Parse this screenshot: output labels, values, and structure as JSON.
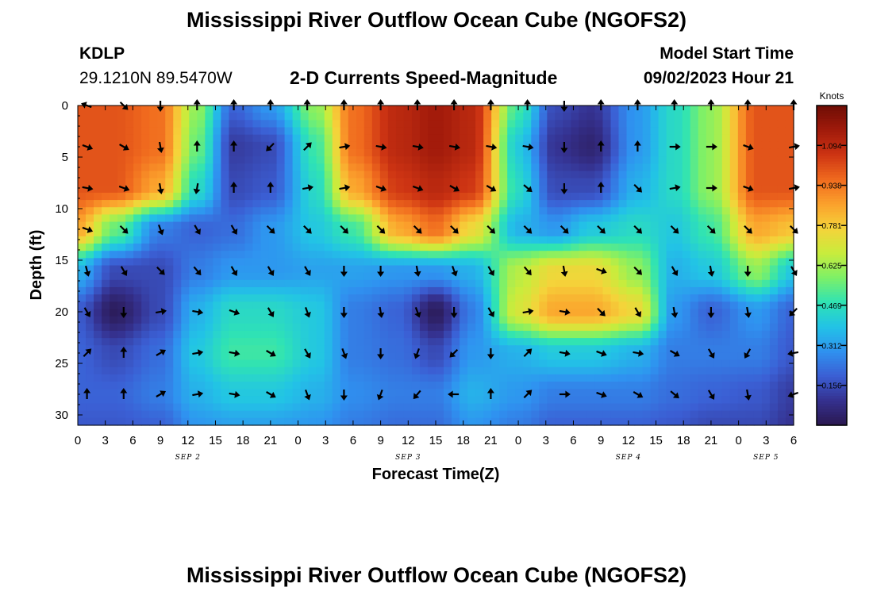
{
  "page": {
    "title": "Mississippi River Outflow Ocean Cube (NGOFS2)",
    "bottom_title": "Mississippi River Outflow Ocean Cube (NGOFS2)",
    "station_id": "KDLP",
    "station_coords": "29.1210N  89.5470W",
    "plot_title": "2-D Currents Speed-Magnitude",
    "model_start_label": "Model Start Time",
    "model_start_value": "09/02/2023 Hour 21"
  },
  "chart_data": {
    "type": "heatmap",
    "title": "2-D Currents Speed-Magnitude",
    "xlabel": "Forecast Time(Z)",
    "ylabel": "Depth (ft)",
    "x_range_hours": [
      0,
      78
    ],
    "x_tick_labels": [
      "0",
      "3",
      "6",
      "9",
      "12",
      "15",
      "18",
      "21",
      "0",
      "3",
      "6",
      "9",
      "12",
      "15",
      "18",
      "21",
      "0",
      "3",
      "6",
      "9",
      "12",
      "15",
      "18",
      "21",
      "0",
      "3",
      "6"
    ],
    "date_labels": [
      {
        "label": "SEP 2",
        "hour": 12
      },
      {
        "label": "SEP 3",
        "hour": 36
      },
      {
        "label": "SEP 4",
        "hour": 60
      },
      {
        "label": "SEP 5",
        "hour": 75
      }
    ],
    "y_range_ft": [
      0,
      31
    ],
    "y_ticks": [
      0,
      5,
      10,
      15,
      20,
      25,
      30
    ],
    "colorbar": {
      "label": "Knots",
      "min": 0.0,
      "max": 1.25,
      "ticks": [
        0.156,
        0.312,
        0.469,
        0.625,
        0.781,
        0.938,
        1.094
      ],
      "tick_labels": [
        "0.156",
        "0.312",
        "0.469",
        "0.625",
        "0.781",
        "0.938",
        "1.094"
      ],
      "colors": [
        "#2a1850",
        "#35318f",
        "#3b5fd4",
        "#2f92f0",
        "#22c3e6",
        "#2fe3b4",
        "#7ef067",
        "#c9ec3c",
        "#f5d33a",
        "#fba02c",
        "#f06a1e",
        "#cd3413",
        "#a01a0b",
        "#6e0d05"
      ]
    },
    "speed_knots": {
      "hours": [
        0,
        4,
        9,
        13,
        17,
        21,
        26,
        30,
        35,
        39,
        43,
        48,
        52,
        56,
        61,
        65,
        69,
        74,
        78
      ],
      "depths_ft": [
        0,
        4,
        8,
        12,
        16,
        20,
        24,
        28,
        31
      ],
      "rows": [
        [
          1.0,
          1.0,
          0.95,
          0.6,
          0.2,
          0.3,
          0.6,
          0.95,
          1.1,
          1.15,
          1.1,
          0.5,
          0.15,
          0.1,
          0.3,
          0.45,
          0.6,
          1.0,
          1.0
        ],
        [
          1.0,
          1.0,
          0.95,
          0.55,
          0.12,
          0.15,
          0.5,
          0.95,
          1.1,
          1.15,
          1.1,
          0.4,
          0.1,
          0.05,
          0.3,
          0.45,
          0.6,
          1.0,
          1.0
        ],
        [
          1.0,
          1.0,
          0.85,
          0.45,
          0.15,
          0.18,
          0.45,
          0.85,
          1.05,
          1.1,
          1.05,
          0.45,
          0.15,
          0.15,
          0.35,
          0.45,
          0.6,
          1.0,
          1.0
        ],
        [
          0.85,
          0.55,
          0.25,
          0.2,
          0.22,
          0.3,
          0.4,
          0.5,
          0.85,
          0.95,
          0.75,
          0.35,
          0.3,
          0.4,
          0.45,
          0.4,
          0.5,
          0.85,
          0.8
        ],
        [
          0.35,
          0.15,
          0.15,
          0.25,
          0.3,
          0.3,
          0.32,
          0.32,
          0.3,
          0.3,
          0.35,
          0.65,
          0.75,
          0.75,
          0.6,
          0.35,
          0.4,
          0.6,
          0.4
        ],
        [
          0.18,
          0.02,
          0.15,
          0.35,
          0.45,
          0.45,
          0.4,
          0.25,
          0.2,
          0.02,
          0.25,
          0.7,
          0.85,
          0.85,
          0.75,
          0.3,
          0.2,
          0.3,
          0.2
        ],
        [
          0.2,
          0.15,
          0.22,
          0.4,
          0.5,
          0.5,
          0.4,
          0.25,
          0.22,
          0.15,
          0.3,
          0.35,
          0.4,
          0.4,
          0.35,
          0.25,
          0.25,
          0.25,
          0.18
        ],
        [
          0.2,
          0.2,
          0.25,
          0.35,
          0.4,
          0.4,
          0.35,
          0.28,
          0.25,
          0.25,
          0.35,
          0.3,
          0.25,
          0.25,
          0.25,
          0.22,
          0.2,
          0.18,
          0.12
        ],
        [
          0.18,
          0.18,
          0.2,
          0.3,
          0.32,
          0.32,
          0.3,
          0.25,
          0.22,
          0.22,
          0.3,
          0.25,
          0.2,
          0.2,
          0.2,
          0.18,
          0.15,
          0.15,
          0.1
        ]
      ]
    },
    "current_vectors": {
      "hours": [
        1,
        5,
        9,
        13,
        17,
        21,
        25,
        29,
        33,
        37,
        41,
        45,
        49,
        53,
        57,
        61,
        65,
        69,
        73,
        78
      ],
      "depths_ft": [
        0,
        4,
        8,
        12,
        16,
        20,
        24,
        28
      ],
      "directions_deg": [
        [
          290,
          135,
          180,
          0,
          0,
          0,
          0,
          0,
          0,
          0,
          0,
          0,
          0,
          180,
          0,
          0,
          0,
          0,
          0,
          0
        ],
        [
          110,
          120,
          170,
          0,
          0,
          225,
          45,
          80,
          100,
          100,
          100,
          100,
          100,
          180,
          0,
          0,
          90,
          90,
          110,
          80
        ],
        [
          100,
          110,
          170,
          190,
          0,
          0,
          80,
          80,
          110,
          110,
          120,
          120,
          130,
          180,
          0,
          135,
          80,
          90,
          110,
          80
        ],
        [
          110,
          135,
          160,
          150,
          150,
          135,
          135,
          135,
          135,
          135,
          135,
          135,
          135,
          135,
          135,
          135,
          135,
          135,
          135,
          135
        ],
        [
          165,
          150,
          135,
          140,
          150,
          150,
          150,
          180,
          180,
          170,
          160,
          150,
          140,
          170,
          110,
          135,
          150,
          170,
          180,
          150
        ],
        [
          150,
          180,
          80,
          100,
          110,
          150,
          160,
          180,
          170,
          160,
          180,
          150,
          80,
          100,
          135,
          150,
          170,
          180,
          170,
          225
        ],
        [
          45,
          0,
          60,
          80,
          100,
          120,
          150,
          160,
          180,
          200,
          225,
          180,
          45,
          100,
          110,
          100,
          120,
          150,
          210,
          260
        ],
        [
          0,
          0,
          60,
          80,
          100,
          120,
          160,
          180,
          200,
          220,
          270,
          0,
          45,
          90,
          110,
          120,
          130,
          150,
          170,
          250
        ]
      ]
    }
  }
}
